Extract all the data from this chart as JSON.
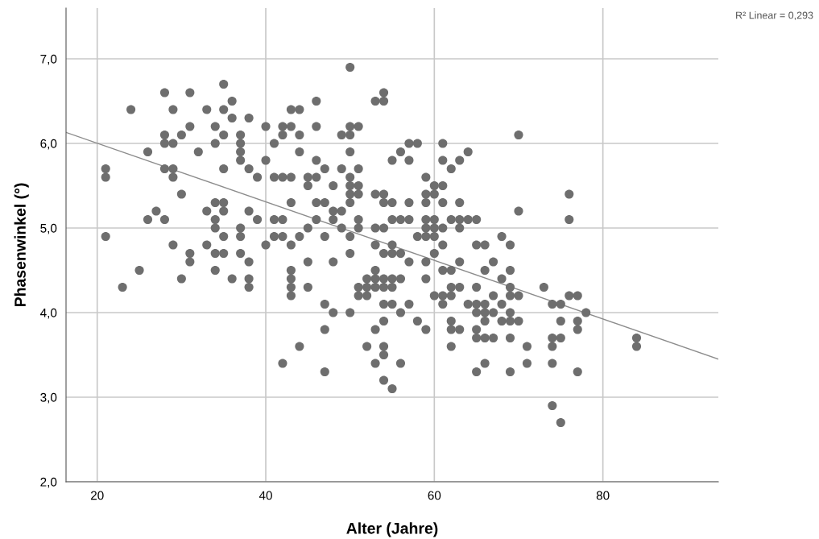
{
  "chart_data": {
    "type": "scatter",
    "xlabel": "Alter (Jahre)",
    "ylabel": "Phasenwinkel (°)",
    "annotations": [
      "R² Linear = 0,293"
    ],
    "xlim": [
      16.3,
      93.7
    ],
    "ylim": [
      2.0,
      7.6
    ],
    "xticks": [
      20,
      40,
      60,
      80
    ],
    "yticks": [
      {
        "value": 2.0,
        "label": "2,0"
      },
      {
        "value": 3.0,
        "label": "3,0"
      },
      {
        "value": 4.0,
        "label": "4,0"
      },
      {
        "value": 5.0,
        "label": "5,0"
      },
      {
        "value": 6.0,
        "label": "6,0"
      },
      {
        "value": 7.0,
        "label": "7,0"
      }
    ],
    "grid": true,
    "series": [
      {
        "marker": "circle",
        "color": "#6e6e6e",
        "x": [
          21,
          21,
          21,
          23,
          24,
          25,
          26,
          26,
          27,
          28,
          28,
          28,
          28,
          28,
          29,
          29,
          29,
          29,
          29,
          30,
          30,
          30,
          31,
          31,
          31,
          31,
          32,
          33,
          33,
          33,
          34,
          34,
          34,
          34,
          34,
          34,
          34,
          35,
          35,
          35,
          35,
          35,
          35,
          35,
          35,
          36,
          36,
          36,
          37,
          37,
          37,
          37,
          37,
          37,
          37,
          38,
          38,
          38,
          38,
          38,
          38,
          39,
          39,
          40,
          40,
          40,
          41,
          41,
          41,
          41,
          42,
          42,
          42,
          42,
          42,
          42,
          43,
          43,
          43,
          43,
          43,
          43,
          43,
          43,
          43,
          44,
          44,
          44,
          44,
          44,
          45,
          45,
          45,
          45,
          45,
          46,
          46,
          46,
          46,
          46,
          46,
          47,
          47,
          47,
          47,
          47,
          47,
          48,
          48,
          48,
          48,
          48,
          49,
          49,
          49,
          49,
          50,
          50,
          50,
          50,
          50,
          50,
          50,
          50,
          50,
          50,
          50,
          51,
          51,
          51,
          51,
          51,
          51,
          51,
          51,
          52,
          52,
          52,
          52,
          53,
          53,
          53,
          53,
          53,
          53,
          53,
          53,
          53,
          54,
          54,
          54,
          54,
          54,
          54,
          54,
          54,
          54,
          54,
          54,
          54,
          54,
          55,
          55,
          55,
          55,
          55,
          55,
          55,
          55,
          55,
          56,
          56,
          56,
          56,
          56,
          56,
          57,
          57,
          57,
          57,
          57,
          57,
          58,
          58,
          58,
          59,
          59,
          59,
          59,
          59,
          59,
          59,
          59,
          59,
          60,
          60,
          60,
          60,
          60,
          60,
          60,
          61,
          61,
          61,
          61,
          61,
          61,
          61,
          61,
          61,
          62,
          62,
          62,
          62,
          62,
          62,
          62,
          62,
          63,
          63,
          63,
          63,
          63,
          63,
          63,
          64,
          64,
          64,
          65,
          65,
          65,
          65,
          65,
          65,
          65,
          65,
          66,
          66,
          66,
          66,
          66,
          66,
          66,
          67,
          67,
          67,
          67,
          68,
          68,
          68,
          68,
          69,
          69,
          69,
          69,
          69,
          69,
          69,
          69,
          70,
          70,
          70,
          70,
          71,
          71,
          73,
          74,
          74,
          74,
          74,
          74,
          75,
          75,
          75,
          75,
          76,
          76,
          76,
          77,
          77,
          77,
          77,
          78,
          84,
          84
        ],
        "values": [
          5.7,
          5.6,
          4.9,
          4.3,
          6.4,
          4.5,
          5.9,
          5.1,
          5.2,
          6.6,
          6.1,
          6.0,
          5.7,
          5.1,
          6.4,
          6.0,
          5.7,
          5.6,
          4.8,
          6.1,
          5.4,
          4.4,
          6.6,
          6.2,
          4.7,
          4.6,
          5.9,
          6.4,
          5.2,
          4.8,
          6.2,
          6.0,
          5.3,
          5.1,
          5.0,
          4.7,
          4.5,
          6.7,
          6.4,
          6.1,
          5.7,
          5.3,
          5.2,
          4.9,
          4.7,
          6.5,
          6.3,
          4.4,
          6.1,
          6.0,
          5.9,
          5.8,
          5.0,
          4.9,
          4.7,
          6.3,
          5.7,
          5.2,
          4.6,
          4.4,
          4.3,
          5.6,
          5.1,
          6.2,
          5.8,
          4.8,
          6.0,
          5.6,
          5.1,
          4.9,
          6.2,
          6.1,
          5.6,
          5.1,
          4.9,
          3.4,
          6.4,
          6.2,
          5.6,
          5.3,
          4.8,
          4.5,
          4.4,
          4.3,
          4.2,
          6.4,
          6.1,
          5.9,
          4.9,
          3.6,
          5.6,
          5.5,
          5.0,
          4.6,
          4.3,
          6.5,
          6.2,
          5.8,
          5.6,
          5.3,
          5.1,
          5.7,
          5.3,
          4.9,
          4.1,
          3.8,
          3.3,
          5.5,
          5.2,
          5.1,
          4.6,
          4.0,
          6.1,
          5.7,
          5.2,
          5.0,
          6.9,
          6.2,
          6.1,
          5.9,
          5.6,
          5.5,
          5.4,
          5.3,
          4.9,
          4.7,
          4.0,
          6.2,
          5.7,
          5.5,
          5.4,
          5.1,
          5.0,
          4.3,
          4.2,
          4.4,
          4.3,
          4.2,
          3.6,
          6.5,
          5.4,
          5.0,
          4.8,
          4.5,
          4.4,
          4.3,
          3.8,
          3.4,
          6.6,
          6.5,
          5.4,
          5.3,
          5.0,
          4.7,
          4.4,
          4.3,
          4.1,
          3.9,
          3.6,
          3.5,
          3.2,
          5.8,
          5.3,
          5.1,
          4.8,
          4.7,
          4.4,
          4.3,
          4.1,
          3.1,
          5.9,
          5.1,
          4.7,
          4.4,
          4.0,
          3.4,
          6.0,
          5.8,
          5.3,
          5.1,
          4.6,
          4.1,
          6.0,
          4.9,
          3.9,
          5.6,
          5.4,
          5.3,
          5.1,
          5.0,
          4.9,
          4.6,
          4.4,
          3.8,
          5.5,
          5.4,
          5.1,
          5.0,
          4.9,
          4.7,
          4.2,
          6.0,
          5.8,
          5.5,
          5.3,
          5.0,
          4.8,
          4.5,
          4.2,
          4.1,
          5.7,
          5.1,
          4.5,
          4.3,
          4.2,
          3.9,
          3.8,
          3.6,
          5.8,
          5.3,
          5.1,
          5.0,
          4.6,
          4.3,
          3.8,
          5.9,
          5.1,
          4.1,
          5.1,
          4.8,
          4.3,
          4.1,
          4.0,
          3.8,
          3.7,
          3.3,
          4.8,
          4.5,
          4.1,
          4.0,
          3.9,
          3.7,
          3.4,
          4.6,
          4.2,
          4.0,
          3.7,
          4.9,
          4.4,
          4.1,
          3.9,
          4.8,
          4.5,
          4.3,
          4.2,
          4.0,
          3.9,
          3.7,
          3.3,
          6.1,
          5.2,
          4.2,
          3.9,
          3.6,
          3.4,
          4.3,
          4.1,
          3.7,
          3.6,
          3.4,
          2.9,
          4.1,
          3.9,
          3.7,
          2.7,
          5.4,
          5.1,
          4.2,
          4.2,
          3.9,
          3.8,
          3.3,
          4.0,
          3.7,
          3.6
        ]
      },
      {
        "type": "line",
        "marker": "none",
        "color": "#8c8c8c",
        "x": [
          16.3,
          93.7
        ],
        "values": [
          6.13,
          3.45
        ]
      }
    ]
  }
}
